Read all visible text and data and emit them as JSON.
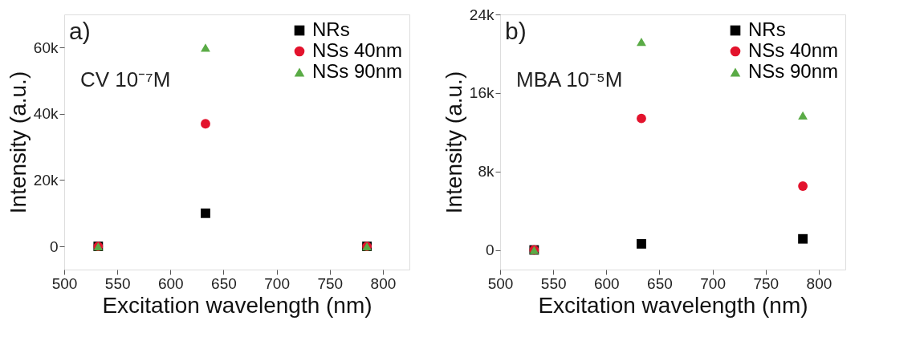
{
  "chart_data": [
    {
      "type": "scatter",
      "xlabel": "Excitation wavelength (nm)",
      "ylabel": "Intensity (a.u.)",
      "annotations": [
        "a)",
        "CV 10⁻⁷M"
      ],
      "x": [
        532,
        633,
        785
      ],
      "xlim": [
        500,
        825
      ],
      "xticks": [
        500,
        550,
        600,
        650,
        700,
        750,
        800
      ],
      "ylim": [
        -7000,
        70000
      ],
      "yticks": [
        0,
        {
          "value": 20000,
          "label": "20k"
        },
        {
          "value": 40000,
          "label": "40k"
        },
        {
          "value": 60000,
          "label": "60k"
        }
      ],
      "grid": false,
      "legend": "top right",
      "series": [
        {
          "name": "NRs",
          "color": "#000000",
          "marker": "square",
          "values": [
            0,
            10000,
            0
          ]
        },
        {
          "name": "NSs 40nm",
          "color": "#e3132d",
          "marker": "circle",
          "values": [
            0,
            37000,
            0
          ]
        },
        {
          "name": "NSs 90nm",
          "color": "#5aab46",
          "marker": "triangle",
          "values": [
            0,
            60000,
            0
          ]
        }
      ]
    },
    {
      "type": "scatter",
      "xlabel": "Excitation wavelength (nm)",
      "ylabel": "Intensity (a.u.)",
      "annotations": [
        "b)",
        "MBA 10⁻⁵M"
      ],
      "x": [
        532,
        633,
        785
      ],
      "xlim": [
        500,
        825
      ],
      "xticks": [
        500,
        550,
        600,
        650,
        700,
        750,
        800
      ],
      "ylim": [
        -2000,
        24000
      ],
      "yticks": [
        0,
        {
          "value": 8000,
          "label": "8k"
        },
        {
          "value": 16000,
          "label": "16k"
        },
        {
          "value": 24000,
          "label": "24k"
        }
      ],
      "grid": false,
      "legend": "top right",
      "series": [
        {
          "name": "NRs",
          "color": "#000000",
          "marker": "square",
          "values": [
            0,
            620,
            1130
          ]
        },
        {
          "name": "NSs 40nm",
          "color": "#e3132d",
          "marker": "circle",
          "values": [
            0,
            13400,
            6500
          ]
        },
        {
          "name": "NSs 90nm",
          "color": "#5aab46",
          "marker": "triangle",
          "values": [
            0,
            21200,
            13700
          ]
        }
      ]
    }
  ]
}
